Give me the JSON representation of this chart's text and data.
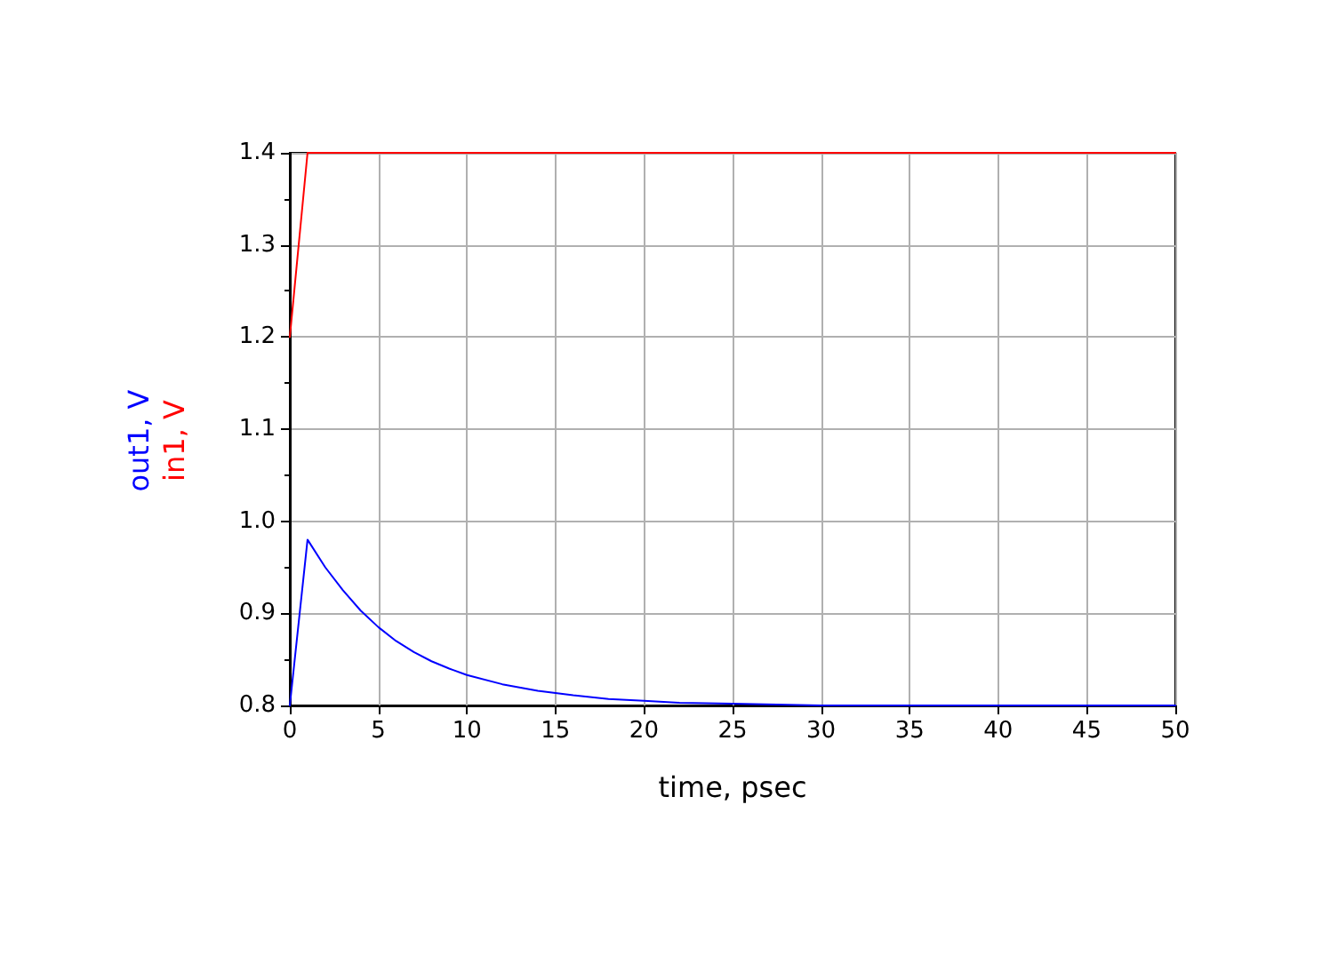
{
  "chart_data": {
    "type": "line",
    "xlabel": "time, psec",
    "xlim": [
      0,
      50
    ],
    "xticks": [
      0,
      5,
      10,
      15,
      20,
      25,
      30,
      35,
      40,
      45,
      50
    ],
    "ylim": [
      0.8,
      1.4
    ],
    "yticks": [
      0.8,
      0.9,
      {
        "value": 1,
        "label": "1.0"
      },
      1.1,
      1.2,
      1.3,
      1.4
    ],
    "grid": true,
    "legend": false,
    "marker": "none",
    "line_style": "solid",
    "series": [
      {
        "name": "out1, V",
        "color": "#0000ff",
        "x": [
          0,
          1,
          2,
          3,
          4,
          5,
          6,
          7,
          8,
          9,
          10,
          12,
          14,
          16,
          18,
          20,
          22,
          25,
          30,
          37,
          50
        ],
        "values": [
          0.8,
          0.98,
          0.95,
          0.925,
          0.903,
          0.885,
          0.87,
          0.858,
          0.848,
          0.84,
          0.833,
          0.823,
          0.816,
          0.811,
          0.807,
          0.805,
          0.803,
          0.802,
          0.8,
          0.8,
          0.8
        ]
      },
      {
        "name": "in1, V",
        "color": "#ff0000",
        "x": [
          0,
          1,
          50
        ],
        "values": [
          1.2,
          1.4,
          1.4
        ]
      }
    ]
  }
}
